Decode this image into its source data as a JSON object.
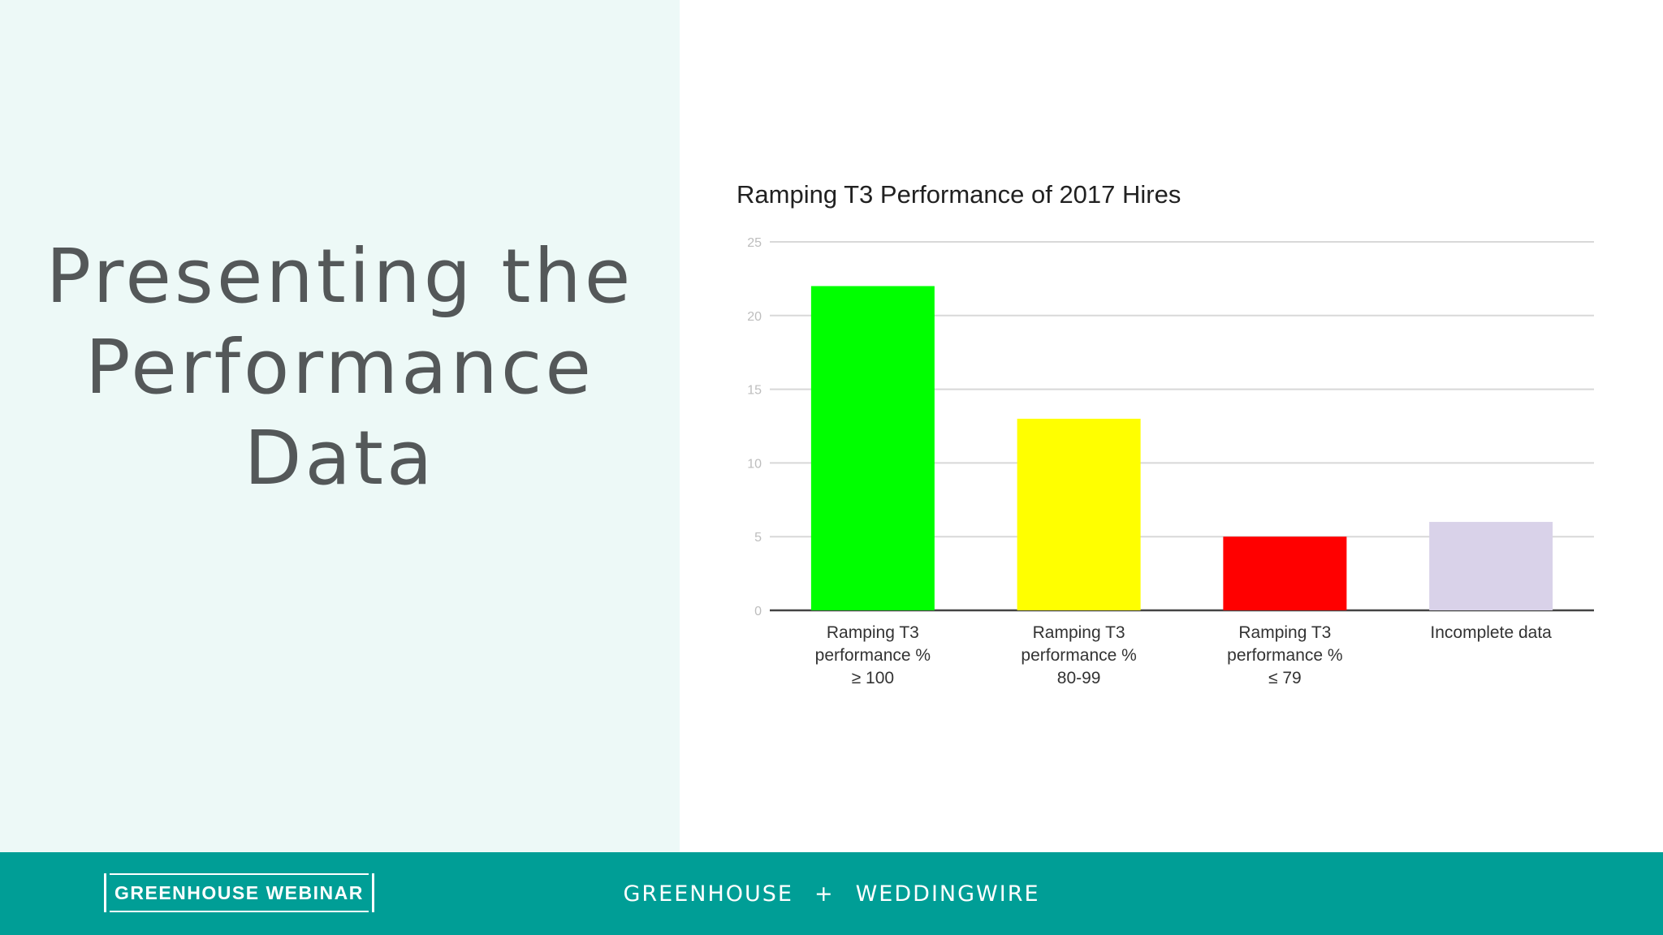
{
  "slide": {
    "title_lines": [
      "Presenting the",
      "Performance",
      "Data"
    ]
  },
  "footer": {
    "badge": "GREENHOUSE WEBINAR",
    "partner_left": "GREENHOUSE",
    "plus": "+",
    "partner_right": "WEDDINGWIRE"
  },
  "colors": {
    "left_panel": "#edf9f7",
    "footer": "#009e96",
    "title_text": "#545859"
  },
  "chart_data": {
    "type": "bar",
    "title": "Ramping T3 Performance of 2017 Hires",
    "xlabel": "",
    "ylabel": "",
    "ylim": [
      0,
      25
    ],
    "yticks": [
      0,
      5,
      10,
      15,
      20,
      25
    ],
    "grid": true,
    "legend": "none",
    "categories": [
      [
        "Ramping T3",
        "performance %",
        "≥ 100"
      ],
      [
        "Ramping T3",
        "performance %",
        "80-99"
      ],
      [
        "Ramping T3",
        "performance %",
        "≤ 79"
      ],
      [
        "Incomplete data"
      ]
    ],
    "values": [
      22,
      13,
      5,
      6
    ],
    "bar_colors": [
      "#00ff00",
      "#ffff00",
      "#ff0000",
      "#d9d2e9"
    ]
  }
}
